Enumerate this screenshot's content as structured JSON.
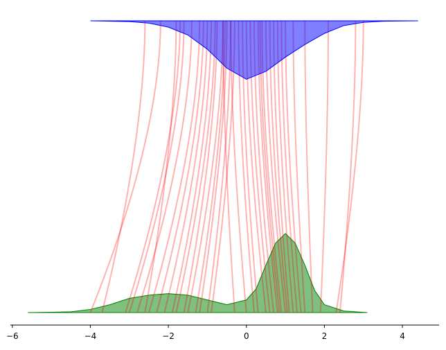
{
  "chart_data": {
    "type": "transport",
    "xlim": [
      -6.05,
      4.94
    ],
    "xticks": [
      {
        "value": -6,
        "label": "−6"
      },
      {
        "value": -4,
        "label": "−4"
      },
      {
        "value": -2,
        "label": "−2"
      },
      0,
      2,
      4
    ],
    "source": {
      "color": "#008000",
      "x": [
        -5.6,
        -5,
        -4.5,
        -4,
        -3.5,
        -3,
        -2.5,
        -2,
        -1.5,
        -1,
        -0.5,
        0,
        0.25,
        0.5,
        0.75,
        1.0,
        1.25,
        1.5,
        1.75,
        2.0,
        2.5,
        3.1
      ],
      "values": [
        0,
        0.002,
        0.005,
        0.02,
        0.05,
        0.09,
        0.11,
        0.12,
        0.11,
        0.08,
        0.05,
        0.08,
        0.15,
        0.3,
        0.44,
        0.5,
        0.44,
        0.3,
        0.14,
        0.05,
        0.01,
        0
      ]
    },
    "target": {
      "color": "#0000ff",
      "x": [
        -4,
        -3,
        -2.5,
        -2,
        -1.5,
        -1,
        -0.5,
        0,
        0.5,
        1,
        1.5,
        2,
        2.5,
        3,
        3.5,
        4.4
      ],
      "values": [
        0,
        0.005,
        0.015,
        0.04,
        0.09,
        0.18,
        0.3,
        0.37,
        0.32,
        0.23,
        0.15,
        0.08,
        0.03,
        0.01,
        0.003,
        0
      ]
    },
    "lines": {
      "color": "#ff0000",
      "bottom": [
        -4.0,
        -3.7,
        -3.1,
        -3.0,
        -2.8,
        -2.6,
        -2.5,
        -2.3,
        -2.1,
        -1.9,
        -1.8,
        -1.6,
        -1.5,
        -1.3,
        -1.2,
        -1.0,
        -0.9,
        -0.3,
        0.0,
        0.2,
        0.3,
        0.5,
        0.6,
        0.7,
        0.8,
        0.85,
        0.9,
        1.0,
        1.05,
        1.1,
        1.2,
        1.3,
        1.4,
        1.5,
        1.7,
        1.9,
        2.3,
        2.4
      ],
      "top": [
        -2.2,
        -2.6,
        -1.7,
        -1.6,
        -1.4,
        -1.8,
        -1.2,
        -1.1,
        -1.0,
        -0.9,
        -0.8,
        -0.75,
        -0.6,
        -0.55,
        -0.5,
        -0.4,
        -0.3,
        -0.6,
        -0.4,
        -0.2,
        -0.1,
        0.0,
        0.1,
        0.2,
        0.3,
        0.35,
        0.4,
        0.5,
        0.6,
        0.7,
        0.8,
        0.9,
        1.0,
        1.2,
        1.5,
        2.1,
        3.0,
        2.8
      ]
    }
  }
}
